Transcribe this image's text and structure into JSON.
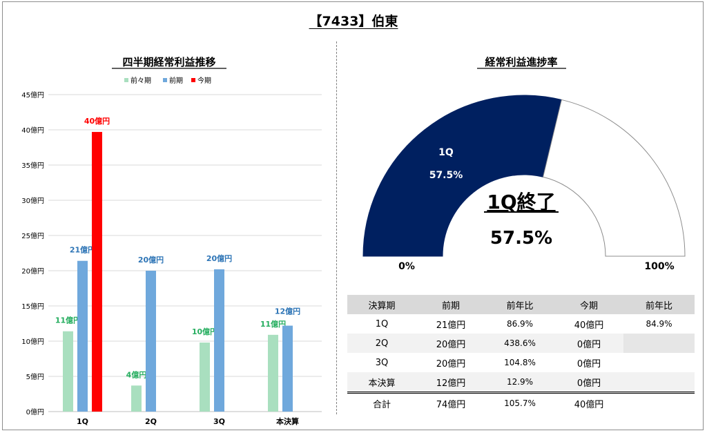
{
  "header": {
    "title": "【7433】伯東"
  },
  "chart_data": [
    {
      "type": "bar",
      "title": "四半期経常利益推移",
      "categories": [
        "1Q",
        "2Q",
        "3Q",
        "本決算"
      ],
      "ylim": [
        0,
        45
      ],
      "yticks": [
        0,
        5,
        10,
        15,
        20,
        25,
        30,
        35,
        40,
        45
      ],
      "y_unit": "億円",
      "grid": true,
      "legend_position": "top",
      "series": [
        {
          "name": "前々期",
          "color": "#a9dfbf",
          "label_color": "#27ae60",
          "values": [
            11.4,
            3.7,
            9.8,
            10.9
          ],
          "labels": [
            "11億円",
            "4億円",
            "10億円",
            "11億円"
          ]
        },
        {
          "name": "前期",
          "color": "#6fa8dc",
          "label_color": "#2e75b6",
          "values": [
            21.4,
            20.0,
            20.2,
            12.2
          ],
          "labels": [
            "21億円",
            "20億円",
            "20億円",
            "12億円"
          ]
        },
        {
          "name": "今期",
          "color": "#ff0000",
          "label_color": "#ff0000",
          "values": [
            39.7,
            null,
            null,
            null
          ],
          "labels": [
            "40億円",
            "",
            "",
            ""
          ]
        }
      ]
    },
    {
      "type": "pie",
      "title": "経常利益進捗率",
      "progress": 0.575,
      "fill_color": "#002060",
      "segment_label": "1Q",
      "segment_value": "57.5%",
      "status": "1Q終了",
      "center_value": "57.5%",
      "min_label": "0%",
      "max_label": "100%"
    }
  ],
  "table": {
    "headers": [
      "決算期",
      "前期",
      "前年比",
      "今期",
      "前年比"
    ],
    "rows": [
      [
        "1Q",
        "21億円",
        "86.9%",
        "40億円",
        "84.9%"
      ],
      [
        "2Q",
        "20億円",
        "438.6%",
        "0億円",
        ""
      ],
      [
        "3Q",
        "20億円",
        "104.8%",
        "0億円",
        ""
      ],
      [
        "本決算",
        "12億円",
        "12.9%",
        "0億円",
        ""
      ]
    ],
    "total": [
      "合計",
      "74億円",
      "105.7%",
      "40億円",
      ""
    ]
  }
}
